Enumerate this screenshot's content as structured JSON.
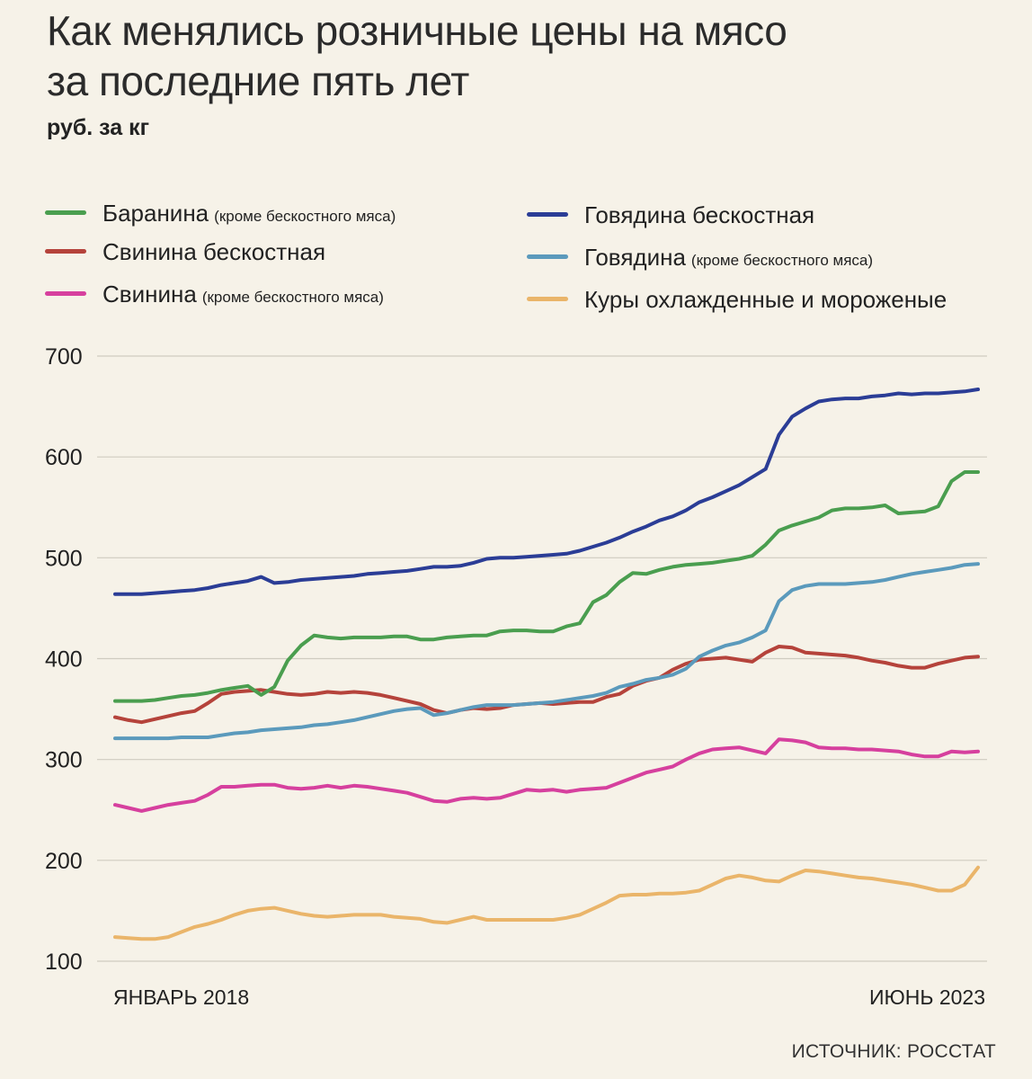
{
  "title_line1": "Как менялись розничные цены на мясо",
  "title_line2": "за последние пять лет",
  "subtitle": "руб. за кг",
  "source": "ИСТОЧНИК: РОССТАТ",
  "chart_data": {
    "type": "line",
    "title": "Как менялись розничные цены на мясо за последние пять лет",
    "ylabel": "руб. за кг",
    "ylim": [
      100,
      700
    ],
    "yticks": [
      700,
      600,
      500,
      400,
      300,
      200,
      100
    ],
    "x_start_label": "ЯНВАРЬ 2018",
    "x_end_label": "ИЮНЬ 2023",
    "n_points": 66,
    "series": [
      {
        "name": "Баранина",
        "note": "(кроме бескостного мяса)",
        "color": "#4a9e4f",
        "values": [
          358,
          358,
          358,
          359,
          361,
          363,
          364,
          366,
          369,
          371,
          373,
          364,
          372,
          398,
          413,
          423,
          421,
          420,
          421,
          421,
          421,
          422,
          422,
          419,
          419,
          421,
          422,
          423,
          423,
          427,
          428,
          428,
          427,
          427,
          432,
          435,
          456,
          463,
          476,
          485,
          484,
          488,
          491,
          493,
          494,
          495,
          497,
          499,
          502,
          513,
          527,
          532,
          536,
          540,
          547,
          549,
          549,
          550,
          552,
          544,
          545,
          546,
          551,
          576,
          585,
          585
        ]
      },
      {
        "name": "Свинина бескостная",
        "note": "",
        "color": "#b5433b",
        "values": [
          342,
          339,
          337,
          340,
          343,
          346,
          348,
          356,
          365,
          367,
          368,
          369,
          367,
          365,
          364,
          365,
          367,
          366,
          367,
          366,
          364,
          361,
          358,
          355,
          349,
          346,
          349,
          351,
          350,
          351,
          354,
          355,
          356,
          355,
          356,
          357,
          357,
          362,
          365,
          373,
          378,
          381,
          389,
          395,
          399,
          400,
          401,
          399,
          397,
          406,
          412,
          411,
          406,
          405,
          404,
          403,
          401,
          398,
          396,
          393,
          391,
          391,
          395,
          398,
          401,
          402
        ]
      },
      {
        "name": "Свинина",
        "note": "(кроме бескостного мяса)",
        "color": "#d6409e",
        "values": [
          255,
          252,
          249,
          252,
          255,
          257,
          259,
          265,
          273,
          273,
          274,
          275,
          275,
          272,
          271,
          272,
          274,
          272,
          274,
          273,
          271,
          269,
          267,
          263,
          259,
          258,
          261,
          262,
          261,
          262,
          266,
          270,
          269,
          270,
          268,
          270,
          271,
          272,
          277,
          282,
          287,
          290,
          293,
          300,
          306,
          310,
          311,
          312,
          309,
          306,
          320,
          319,
          317,
          312,
          311,
          311,
          310,
          310,
          309,
          308,
          305,
          303,
          303,
          308,
          307,
          308
        ]
      },
      {
        "name": "Говядина бескостная",
        "note": "",
        "color": "#2b3d96",
        "values": [
          464,
          464,
          464,
          465,
          466,
          467,
          468,
          470,
          473,
          475,
          477,
          481,
          475,
          476,
          478,
          479,
          480,
          481,
          482,
          484,
          485,
          486,
          487,
          489,
          491,
          491,
          492,
          495,
          499,
          500,
          500,
          501,
          502,
          503,
          504,
          507,
          511,
          515,
          520,
          526,
          531,
          537,
          541,
          547,
          555,
          560,
          566,
          572,
          580,
          588,
          622,
          640,
          648,
          655,
          657,
          658,
          658,
          660,
          661,
          663,
          662,
          663,
          663,
          664,
          665,
          667
        ]
      },
      {
        "name": "Говядина",
        "note": "(кроме бескостного мяса)",
        "color": "#5b9abc",
        "values": [
          321,
          321,
          321,
          321,
          321,
          322,
          322,
          322,
          324,
          326,
          327,
          329,
          330,
          331,
          332,
          334,
          335,
          337,
          339,
          342,
          345,
          348,
          350,
          351,
          344,
          346,
          349,
          352,
          354,
          354,
          354,
          355,
          356,
          357,
          359,
          361,
          363,
          366,
          372,
          375,
          379,
          381,
          384,
          390,
          402,
          408,
          413,
          416,
          421,
          428,
          457,
          468,
          472,
          474,
          474,
          474,
          475,
          476,
          478,
          481,
          484,
          486,
          488,
          490,
          493,
          494
        ]
      },
      {
        "name": "Куры охлажденные и мороженые",
        "note": "",
        "color": "#eab56a",
        "values": [
          124,
          123,
          122,
          122,
          124,
          129,
          134,
          137,
          141,
          146,
          150,
          152,
          153,
          150,
          147,
          145,
          144,
          145,
          146,
          146,
          146,
          144,
          143,
          142,
          139,
          138,
          141,
          144,
          141,
          141,
          141,
          141,
          141,
          141,
          143,
          146,
          152,
          158,
          165,
          166,
          166,
          167,
          167,
          168,
          170,
          176,
          182,
          185,
          183,
          180,
          179,
          185,
          190,
          189,
          187,
          185,
          183,
          182,
          180,
          178,
          176,
          173,
          170,
          170,
          176,
          193
        ]
      }
    ]
  }
}
